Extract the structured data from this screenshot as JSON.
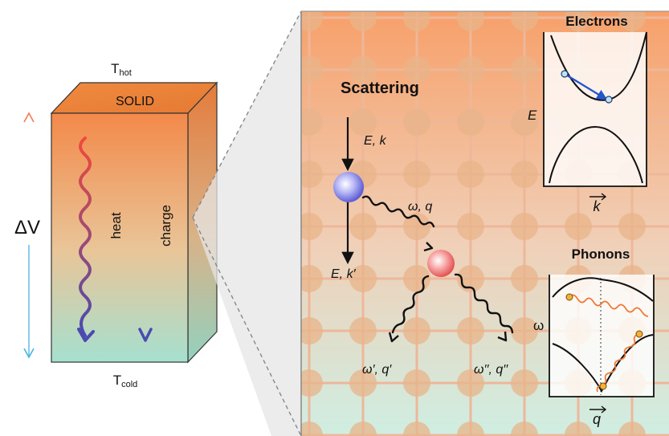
{
  "solid_block": {
    "t_hot_main": "T",
    "t_hot_sub": "hot",
    "t_cold_main": "T",
    "t_cold_sub": "cold",
    "top_label": "SOLID",
    "voltage_label": "ΔV",
    "heat_label": "heat",
    "charge_label": "charge"
  },
  "scattering": {
    "title": "Scattering",
    "incoming_label": "E, k",
    "outgoing_label": "E, k′",
    "phonon_label": "ω, q",
    "phonon1_label": "ω′, q′",
    "phonon2_label": "ω′′, q′′"
  },
  "electrons_panel": {
    "title": "Electrons",
    "y_axis_label": "E",
    "x_axis_label": "k"
  },
  "phonons_panel": {
    "title": "Phonons",
    "y_axis_label": "ω",
    "x_axis_label": "q"
  },
  "colors": {
    "hot": "#f28a45",
    "cold": "#a8e0d0",
    "lattice_atom": "#e8b48a",
    "electron_particle": "#6f6fe0",
    "phonon_particle": "#f06a6a",
    "transition_arrow": "#2255cc",
    "phonon_wave": "#f07a3a"
  }
}
